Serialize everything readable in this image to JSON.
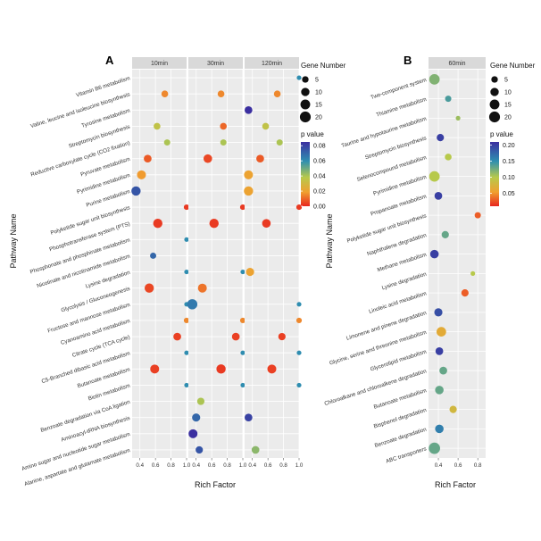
{
  "colors": {
    "gradient_top": "#3b2fa0",
    "gradient_upper": "#2f8fb0",
    "gradient_mid": "#b7c94b",
    "gradient_lower": "#f0a030",
    "gradient_bottom": "#e8261f"
  },
  "chart_data": [
    {
      "type": "scatter",
      "panel_label": "A",
      "ylabel": "Pathway Name",
      "xlabel": "Rich Factor",
      "facets": [
        "10min",
        "30min",
        "120min"
      ],
      "xlim": [
        0.3,
        1.0
      ],
      "xticks": [
        "0.4",
        "0.6",
        "0.8",
        "1.0"
      ],
      "xtick_values": [
        0.4,
        0.6,
        0.8,
        1.0
      ],
      "grid": true,
      "categories": [
        "Vitamin B6 metabolism",
        "Valine, leucine and isoleucine biosynthesis",
        "Tyrosine metabolism",
        "Streptomycin biosynthesis",
        "Reductive carboxylate cycle (CO2 fixation)",
        "Pyruvate metabolism",
        "Pyrimidine metabolism",
        "Purine metabolism",
        "Polyketide sugar unit biosynthesis",
        "Phosphotransferase system (PTS)",
        "Phosphonate and phosphinate metabolism",
        "Nicotinate and nicotinamide metabolism",
        "Lysine degradation",
        "Glycolysis / Gluconeogenesis",
        "Fructose and mannose metabolism",
        "Cyanoamino acid metabolism",
        "Citrate cycle (TCA cycle)",
        "C5-Branched dibasic acid metabolism",
        "Butanoate metabolism",
        "Biotin metabolism",
        "Benzoate degradation via CoA ligation",
        "Aminoacyl-tRNA biosynthesis",
        "Amino sugar and nucleotide sugar metabolism",
        "Alanine, aspartate and glutamate metabolism"
      ],
      "legend": {
        "size_title": "Gene Number",
        "size_values": [
          5,
          10,
          15,
          20
        ],
        "color_title": "p value",
        "color_ticks": [
          "0.08",
          "0.06",
          "0.04",
          "0.02",
          "0.00"
        ],
        "color_tick_values": [
          0.08,
          0.06,
          0.04,
          0.02,
          0.0
        ],
        "color_max": 0.085
      },
      "points": [
        {
          "facet": 0,
          "cat": 1,
          "x": 0.72,
          "size": 4,
          "p": 0.015
        },
        {
          "facet": 0,
          "cat": 3,
          "x": 0.62,
          "size": 4,
          "p": 0.035
        },
        {
          "facet": 0,
          "cat": 4,
          "x": 0.75,
          "size": 3,
          "p": 0.04
        },
        {
          "facet": 0,
          "cat": 5,
          "x": 0.5,
          "size": 6,
          "p": 0.008
        },
        {
          "facet": 0,
          "cat": 6,
          "x": 0.42,
          "size": 9,
          "p": 0.018
        },
        {
          "facet": 0,
          "cat": 7,
          "x": 0.35,
          "size": 10,
          "p": 0.075
        },
        {
          "facet": 0,
          "cat": 8,
          "x": 1.0,
          "size": 2,
          "p": 0.003
        },
        {
          "facet": 0,
          "cat": 9,
          "x": 0.63,
          "size": 10,
          "p": 0.003
        },
        {
          "facet": 0,
          "cat": 10,
          "x": 1.0,
          "size": 1,
          "p": 0.06
        },
        {
          "facet": 0,
          "cat": 11,
          "x": 0.57,
          "size": 3,
          "p": 0.07
        },
        {
          "facet": 0,
          "cat": 12,
          "x": 1.0,
          "size": 1,
          "p": 0.06
        },
        {
          "facet": 0,
          "cat": 13,
          "x": 0.52,
          "size": 10,
          "p": 0.005
        },
        {
          "facet": 0,
          "cat": 14,
          "x": 1.0,
          "size": 1,
          "p": 0.06
        },
        {
          "facet": 0,
          "cat": 15,
          "x": 1.0,
          "size": 2,
          "p": 0.015
        },
        {
          "facet": 0,
          "cat": 16,
          "x": 0.88,
          "size": 6,
          "p": 0.004
        },
        {
          "facet": 0,
          "cat": 17,
          "x": 1.0,
          "size": 1,
          "p": 0.06
        },
        {
          "facet": 0,
          "cat": 18,
          "x": 0.59,
          "size": 9,
          "p": 0.004
        },
        {
          "facet": 0,
          "cat": 19,
          "x": 1.0,
          "size": 1,
          "p": 0.06
        },
        {
          "facet": 1,
          "cat": 1,
          "x": 0.72,
          "size": 4,
          "p": 0.015
        },
        {
          "facet": 1,
          "cat": 3,
          "x": 0.75,
          "size": 4,
          "p": 0.01
        },
        {
          "facet": 1,
          "cat": 4,
          "x": 0.75,
          "size": 3,
          "p": 0.04
        },
        {
          "facet": 1,
          "cat": 5,
          "x": 0.55,
          "size": 8,
          "p": 0.005
        },
        {
          "facet": 1,
          "cat": 8,
          "x": 1.0,
          "size": 2,
          "p": 0.003
        },
        {
          "facet": 1,
          "cat": 9,
          "x": 0.63,
          "size": 10,
          "p": 0.003
        },
        {
          "facet": 1,
          "cat": 12,
          "x": 1.0,
          "size": 1,
          "p": 0.06
        },
        {
          "facet": 1,
          "cat": 13,
          "x": 0.48,
          "size": 9,
          "p": 0.012
        },
        {
          "facet": 1,
          "cat": 14,
          "x": 0.35,
          "size": 13,
          "p": 0.065
        },
        {
          "facet": 1,
          "cat": 15,
          "x": 1.0,
          "size": 2,
          "p": 0.015
        },
        {
          "facet": 1,
          "cat": 16,
          "x": 0.91,
          "size": 6,
          "p": 0.004
        },
        {
          "facet": 1,
          "cat": 17,
          "x": 1.0,
          "size": 1,
          "p": 0.06
        },
        {
          "facet": 1,
          "cat": 18,
          "x": 0.72,
          "size": 10,
          "p": 0.003
        },
        {
          "facet": 1,
          "cat": 19,
          "x": 1.0,
          "size": 1,
          "p": 0.06
        },
        {
          "facet": 1,
          "cat": 20,
          "x": 0.46,
          "size": 5,
          "p": 0.04
        },
        {
          "facet": 1,
          "cat": 21,
          "x": 0.4,
          "size": 7,
          "p": 0.07
        },
        {
          "facet": 1,
          "cat": 22,
          "x": 0.36,
          "size": 9,
          "p": 0.085
        },
        {
          "facet": 1,
          "cat": 23,
          "x": 0.44,
          "size": 5,
          "p": 0.075
        },
        {
          "facet": 2,
          "cat": 0,
          "x": 1.0,
          "size": 1,
          "p": 0.06
        },
        {
          "facet": 2,
          "cat": 1,
          "x": 0.72,
          "size": 4,
          "p": 0.015
        },
        {
          "facet": 2,
          "cat": 2,
          "x": 0.35,
          "size": 6,
          "p": 0.085
        },
        {
          "facet": 2,
          "cat": 3,
          "x": 0.57,
          "size": 4,
          "p": 0.035
        },
        {
          "facet": 2,
          "cat": 4,
          "x": 0.75,
          "size": 3,
          "p": 0.04
        },
        {
          "facet": 2,
          "cat": 5,
          "x": 0.5,
          "size": 6,
          "p": 0.008
        },
        {
          "facet": 2,
          "cat": 6,
          "x": 0.35,
          "size": 9,
          "p": 0.02
        },
        {
          "facet": 2,
          "cat": 7,
          "x": 0.35,
          "size": 10,
          "p": 0.02
        },
        {
          "facet": 2,
          "cat": 8,
          "x": 1.0,
          "size": 2,
          "p": 0.003
        },
        {
          "facet": 2,
          "cat": 9,
          "x": 0.58,
          "size": 8,
          "p": 0.003
        },
        {
          "facet": 2,
          "cat": 12,
          "x": 0.37,
          "size": 7,
          "p": 0.02
        },
        {
          "facet": 2,
          "cat": 14,
          "x": 1.0,
          "size": 1,
          "p": 0.06
        },
        {
          "facet": 2,
          "cat": 15,
          "x": 1.0,
          "size": 2,
          "p": 0.015
        },
        {
          "facet": 2,
          "cat": 16,
          "x": 0.78,
          "size": 5,
          "p": 0.004
        },
        {
          "facet": 2,
          "cat": 17,
          "x": 1.0,
          "size": 1,
          "p": 0.06
        },
        {
          "facet": 2,
          "cat": 18,
          "x": 0.65,
          "size": 9,
          "p": 0.004
        },
        {
          "facet": 2,
          "cat": 19,
          "x": 1.0,
          "size": 1,
          "p": 0.06
        },
        {
          "facet": 2,
          "cat": 21,
          "x": 0.35,
          "size": 6,
          "p": 0.08
        },
        {
          "facet": 2,
          "cat": 23,
          "x": 0.44,
          "size": 6,
          "p": 0.045
        }
      ]
    },
    {
      "type": "scatter",
      "panel_label": "B",
      "ylabel": "Pathway Name",
      "xlabel": "Rich Factor",
      "facets": [
        "60min"
      ],
      "xlim": [
        0.3,
        0.88
      ],
      "xticks": [
        "0.4",
        "0.6",
        "0.8"
      ],
      "xtick_values": [
        0.4,
        0.6,
        0.8
      ],
      "grid": true,
      "categories": [
        "Two-component system",
        "Thiamine metabolism",
        "Taurine and hypotaurine metabolism",
        "Streptomycin biosynthesis",
        "Selenocompound metabolism",
        "Pyrimidine metabolism",
        "Propanoate metabolism",
        "Polyketide sugar unit biosynthesis",
        "Naphthalene degradation",
        "Methane metabolism",
        "Lysine degradation",
        "Linoleic acid metabolism",
        "Limonene and pinene degradation",
        "Glycine, serine and threonine metabolism",
        "Glycerolipid metabolism",
        "Chloroalkane and chloroalkene degradation",
        "Butanoate metabolism",
        "Bisphenol degradation",
        "Benzoate degradation",
        "ABC transporters"
      ],
      "legend": {
        "size_title": "Gene Number",
        "size_values": [
          5,
          10,
          15,
          20
        ],
        "color_title": "p value",
        "color_ticks": [
          "0.20",
          "0.15",
          "0.10",
          "0.05"
        ],
        "color_tick_values": [
          0.2,
          0.15,
          0.1,
          0.05
        ],
        "color_min": 0.01,
        "color_max": 0.21
      },
      "points": [
        {
          "facet": 0,
          "cat": 0,
          "x": 0.36,
          "size": 14,
          "p": 0.12
        },
        {
          "facet": 0,
          "cat": 1,
          "x": 0.5,
          "size": 3,
          "p": 0.14
        },
        {
          "facet": 0,
          "cat": 2,
          "x": 0.6,
          "size": 1,
          "p": 0.11
        },
        {
          "facet": 0,
          "cat": 3,
          "x": 0.42,
          "size": 5,
          "p": 0.2
        },
        {
          "facet": 0,
          "cat": 4,
          "x": 0.5,
          "size": 4,
          "p": 0.1
        },
        {
          "facet": 0,
          "cat": 5,
          "x": 0.36,
          "size": 14,
          "p": 0.1
        },
        {
          "facet": 0,
          "cat": 6,
          "x": 0.4,
          "size": 6,
          "p": 0.2
        },
        {
          "facet": 0,
          "cat": 7,
          "x": 0.8,
          "size": 3,
          "p": 0.03
        },
        {
          "facet": 0,
          "cat": 8,
          "x": 0.47,
          "size": 5,
          "p": 0.13
        },
        {
          "facet": 0,
          "cat": 9,
          "x": 0.36,
          "size": 8,
          "p": 0.2
        },
        {
          "facet": 0,
          "cat": 10,
          "x": 0.75,
          "size": 1,
          "p": 0.1
        },
        {
          "facet": 0,
          "cat": 11,
          "x": 0.67,
          "size": 5,
          "p": 0.03
        },
        {
          "facet": 0,
          "cat": 12,
          "x": 0.4,
          "size": 7,
          "p": 0.19
        },
        {
          "facet": 0,
          "cat": 13,
          "x": 0.43,
          "size": 11,
          "p": 0.065
        },
        {
          "facet": 0,
          "cat": 14,
          "x": 0.41,
          "size": 6,
          "p": 0.2
        },
        {
          "facet": 0,
          "cat": 15,
          "x": 0.45,
          "size": 6,
          "p": 0.13
        },
        {
          "facet": 0,
          "cat": 16,
          "x": 0.41,
          "size": 8,
          "p": 0.13
        },
        {
          "facet": 0,
          "cat": 17,
          "x": 0.55,
          "size": 5,
          "p": 0.08
        },
        {
          "facet": 0,
          "cat": 18,
          "x": 0.41,
          "size": 8,
          "p": 0.16
        },
        {
          "facet": 0,
          "cat": 19,
          "x": 0.36,
          "size": 17,
          "p": 0.13
        }
      ]
    }
  ]
}
